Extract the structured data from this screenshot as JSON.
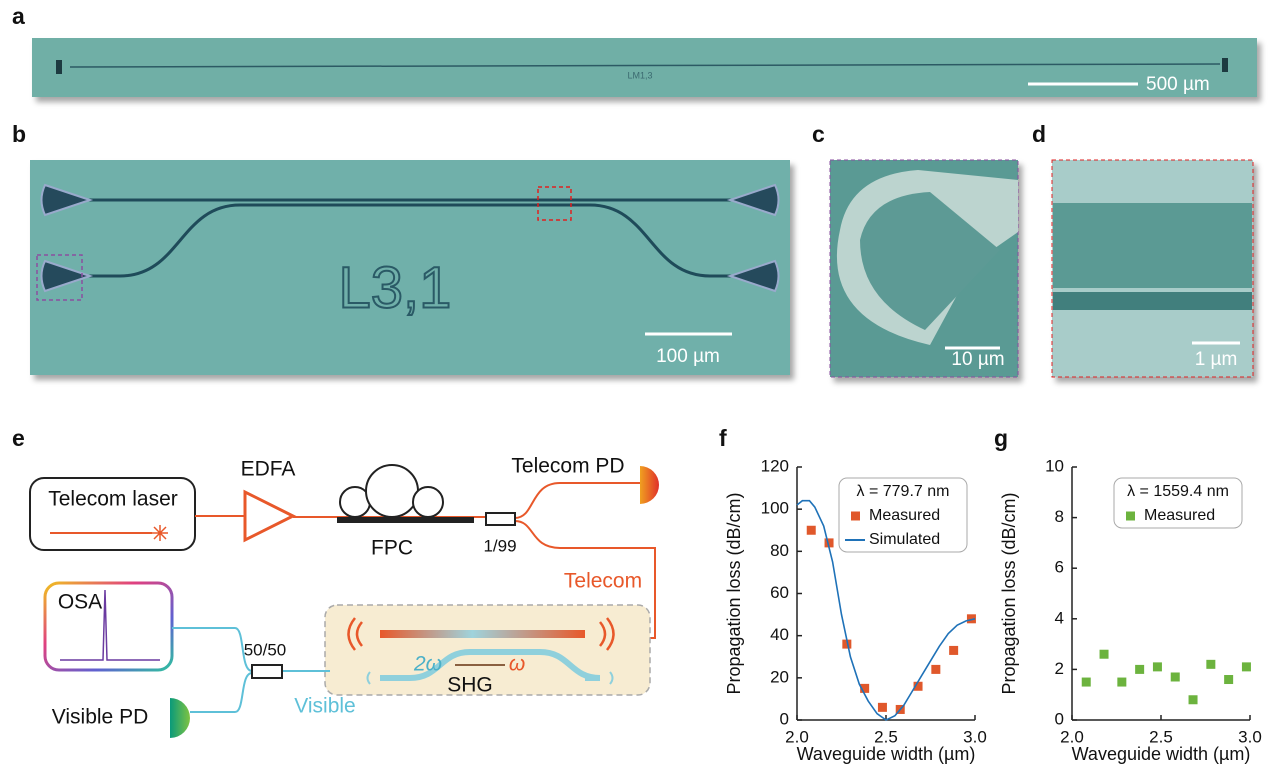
{
  "panels": {
    "a": {
      "label": "a",
      "chip_label": "LM1,3",
      "scale_bar": "500 µm"
    },
    "b": {
      "label": "b",
      "chip_label": "L3,1",
      "scale_bar": "100 µm"
    },
    "c": {
      "label": "c",
      "scale_bar": "10 µm"
    },
    "d": {
      "label": "d",
      "scale_bar": "1 µm"
    },
    "e": {
      "label": "e",
      "laser": "Telecom laser",
      "edfa": "EDFA",
      "fpc": "FPC",
      "telecom_pd": "Telecom PD",
      "splitter_1": "1/99",
      "telecom": "Telecom",
      "osa": "OSA",
      "splitter_2": "50/50",
      "sh": "2ω",
      "fundamental": "ω",
      "shg": "SHG",
      "visible": "Visible",
      "visible_pd": "Visible PD"
    }
  },
  "chart_data": [
    {
      "type": "scatter",
      "label": "f",
      "xlabel": "Waveguide width (µm)",
      "ylabel": "Propagation loss (dB/cm)",
      "xlim": [
        2.0,
        3.0
      ],
      "xticks": [
        {
          "value": 2,
          "label": "2.0"
        },
        {
          "value": 2.5,
          "label": "2.5"
        },
        {
          "value": 3,
          "label": "3.0"
        }
      ],
      "ylim": [
        0,
        120
      ],
      "yticks": [
        0,
        20,
        40,
        60,
        80,
        100,
        120
      ],
      "legend": "upper right",
      "legend_title": "λ = 779.7 nm",
      "series": [
        {
          "name": "Measured",
          "mode": "markers",
          "color": "#e0582b",
          "x": [
            2.08,
            2.18,
            2.28,
            2.38,
            2.48,
            2.58,
            2.68,
            2.78,
            2.88,
            2.98
          ],
          "values": [
            90,
            84,
            36,
            15,
            6,
            5,
            16,
            24,
            33,
            48
          ]
        },
        {
          "name": "Simulated",
          "mode": "line",
          "color": "#1f72b8",
          "x": [
            2.0,
            2.03,
            2.07,
            2.1,
            2.15,
            2.2,
            2.25,
            2.3,
            2.35,
            2.4,
            2.45,
            2.5,
            2.55,
            2.6,
            2.65,
            2.7,
            2.75,
            2.8,
            2.85,
            2.9,
            2.95,
            3.0
          ],
          "values": [
            102,
            104,
            104,
            101,
            92,
            75,
            50,
            30,
            17,
            9,
            3,
            0,
            2,
            7,
            14,
            21,
            28,
            35,
            41,
            45,
            47,
            48
          ]
        }
      ]
    },
    {
      "type": "scatter",
      "label": "g",
      "xlabel": "Waveguide width (µm)",
      "ylabel": "Propagation loss (dB/cm)",
      "xlim": [
        2.0,
        3.0
      ],
      "xticks": [
        {
          "value": 2,
          "label": "2.0"
        },
        {
          "value": 2.5,
          "label": "2.5"
        },
        {
          "value": 3,
          "label": "3.0"
        }
      ],
      "ylim": [
        0,
        10
      ],
      "yticks": [
        0,
        2,
        4,
        6,
        8,
        10
      ],
      "legend": "upper right",
      "legend_title": "λ = 1559.4 nm",
      "series": [
        {
          "name": "Measured",
          "mode": "markers",
          "color": "#6cb33e",
          "x": [
            2.08,
            2.18,
            2.28,
            2.38,
            2.48,
            2.58,
            2.68,
            2.78,
            2.88,
            2.98
          ],
          "values": [
            1.5,
            2.6,
            1.5,
            2.0,
            2.1,
            1.7,
            0.8,
            2.2,
            1.6,
            2.1
          ]
        }
      ]
    }
  ]
}
